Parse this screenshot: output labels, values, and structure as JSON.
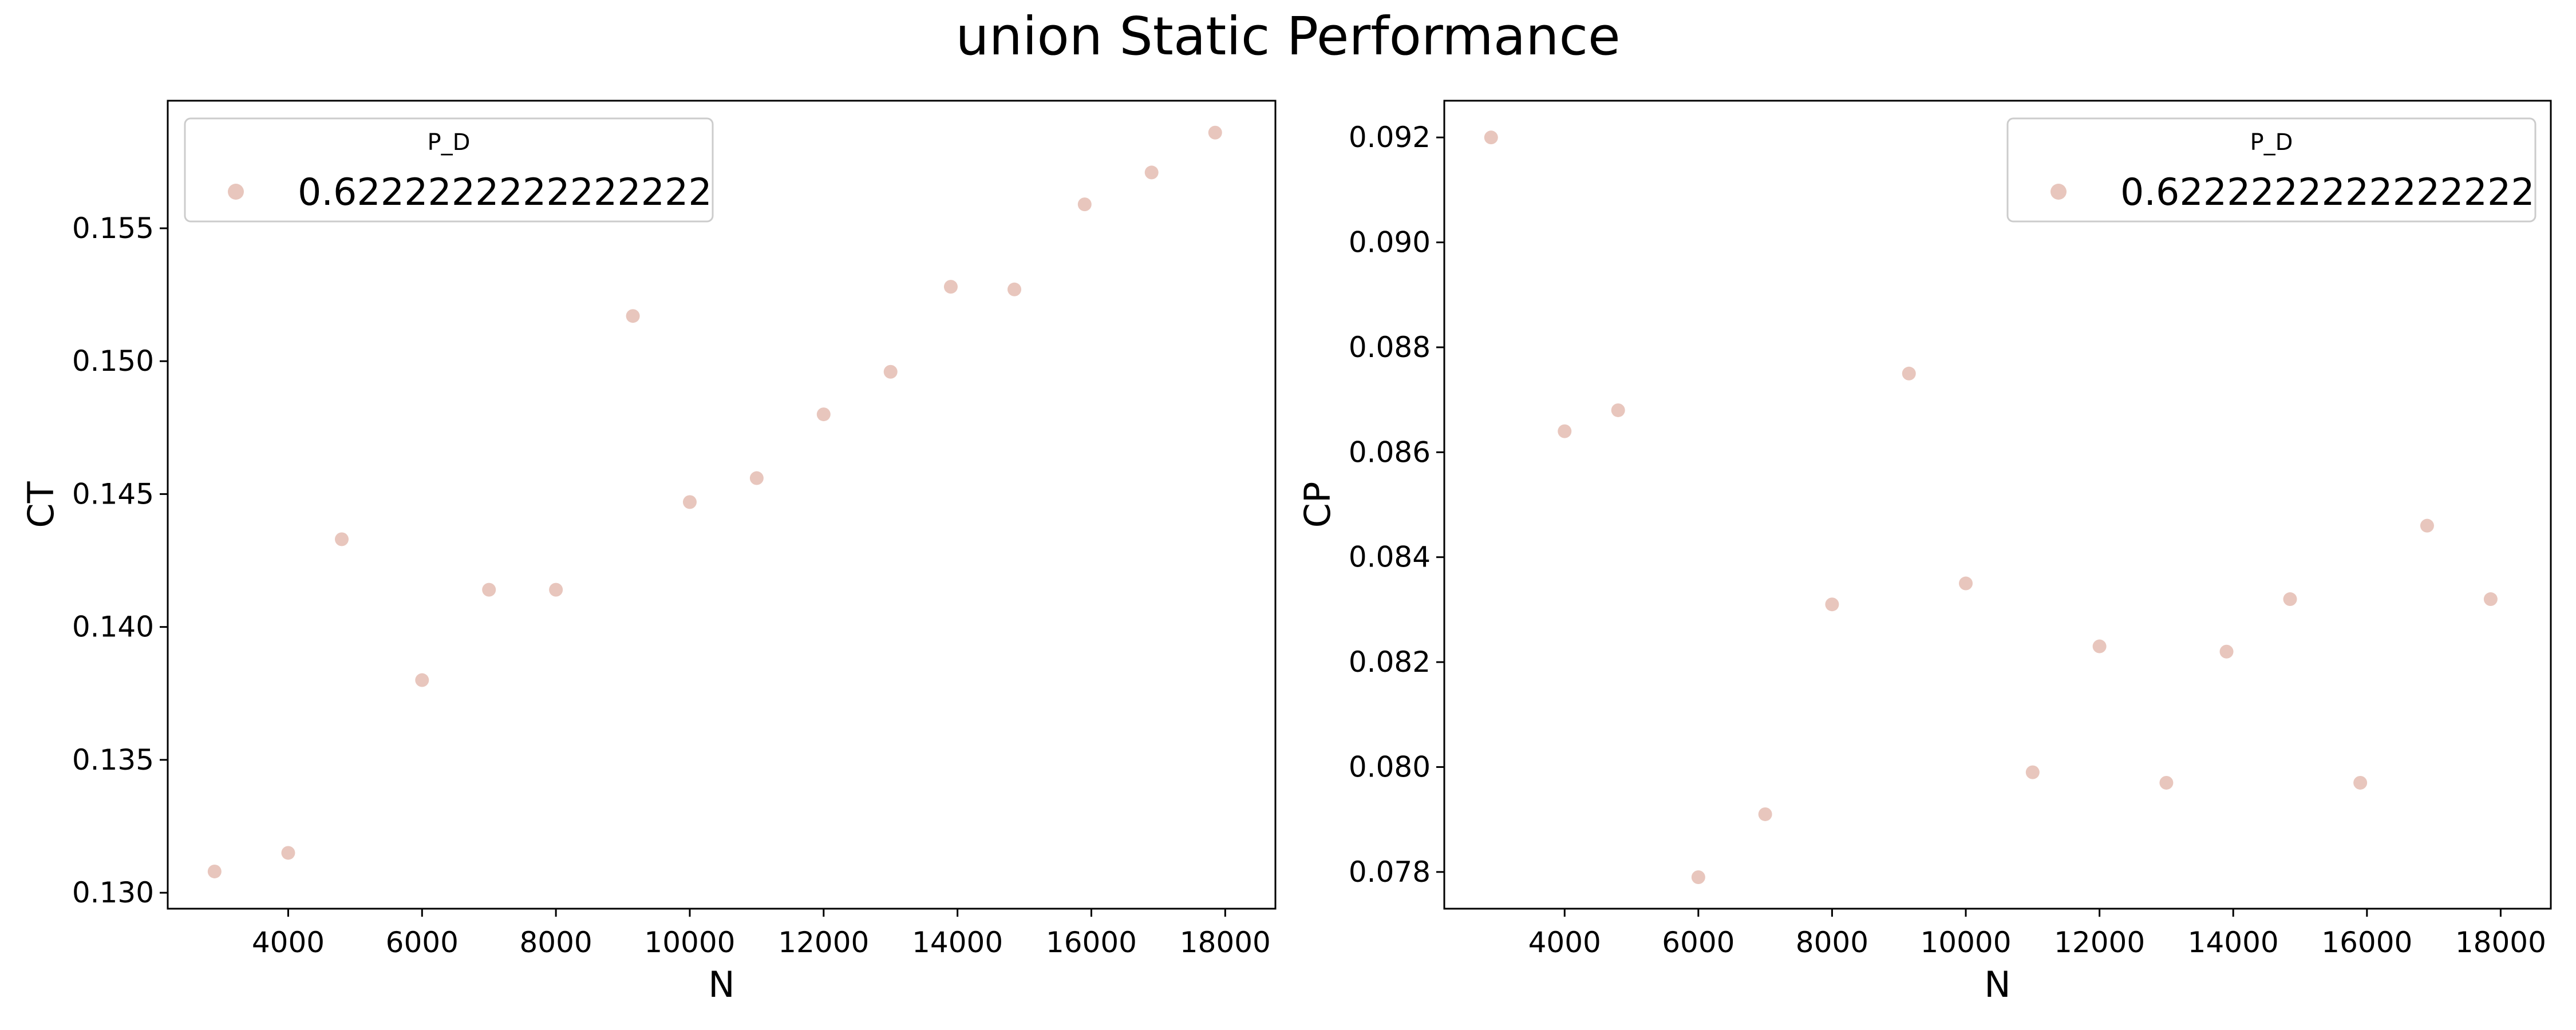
{
  "figure": {
    "title": "union Static Performance",
    "colors": {
      "point": "#e8c6bd",
      "axis": "#000000",
      "legend_border": "#cccccc",
      "background": "#ffffff"
    }
  },
  "chart_data": [
    {
      "type": "scatter",
      "xlabel": "N",
      "ylabel": "CT",
      "xlim": [
        2200,
        18750
      ],
      "ylim": [
        0.1294,
        0.1598
      ],
      "xticks": [
        4000,
        6000,
        8000,
        10000,
        12000,
        14000,
        16000,
        18000
      ],
      "yticks": [
        0.13,
        0.135,
        0.14,
        0.145,
        0.15,
        0.155
      ],
      "ytick_labels": [
        "0.130",
        "0.135",
        "0.140",
        "0.145",
        "0.150",
        "0.155"
      ],
      "grid": false,
      "legend": {
        "title": "P_D",
        "placement": "top-left",
        "entries": [
          "0.6222222222222222"
        ]
      },
      "series": [
        {
          "name": "0.6222222222222222",
          "x": [
            2900,
            4000,
            4800,
            6000,
            7000,
            8000,
            9150,
            10000,
            11000,
            12000,
            13000,
            13900,
            14850,
            15900,
            16900,
            17850
          ],
          "y": [
            0.1308,
            0.1315,
            0.1433,
            0.138,
            0.1414,
            0.1414,
            0.1517,
            0.1447,
            0.1456,
            0.148,
            0.1496,
            0.1528,
            0.1527,
            0.1559,
            0.1571,
            0.1586
          ]
        }
      ]
    },
    {
      "type": "scatter",
      "xlabel": "N",
      "ylabel": "CP",
      "xlim": [
        2200,
        18750
      ],
      "ylim": [
        0.0773,
        0.0927
      ],
      "xticks": [
        4000,
        6000,
        8000,
        10000,
        12000,
        14000,
        16000,
        18000
      ],
      "yticks": [
        0.078,
        0.08,
        0.082,
        0.084,
        0.086,
        0.088,
        0.09,
        0.092
      ],
      "ytick_labels": [
        "0.078",
        "0.080",
        "0.082",
        "0.084",
        "0.086",
        "0.088",
        "0.090",
        "0.092"
      ],
      "grid": false,
      "legend": {
        "title": "P_D",
        "placement": "top-right",
        "entries": [
          "0.6222222222222222"
        ]
      },
      "series": [
        {
          "name": "0.6222222222222222",
          "x": [
            2900,
            4000,
            4800,
            6000,
            7000,
            8000,
            9150,
            10000,
            11000,
            12000,
            13000,
            13900,
            14850,
            15900,
            16900,
            17850
          ],
          "y": [
            0.092,
            0.0864,
            0.0868,
            0.0779,
            0.0791,
            0.0831,
            0.0875,
            0.0835,
            0.0799,
            0.0823,
            0.0797,
            0.0822,
            0.0832,
            0.0797,
            0.0846,
            0.0832
          ]
        }
      ]
    }
  ]
}
